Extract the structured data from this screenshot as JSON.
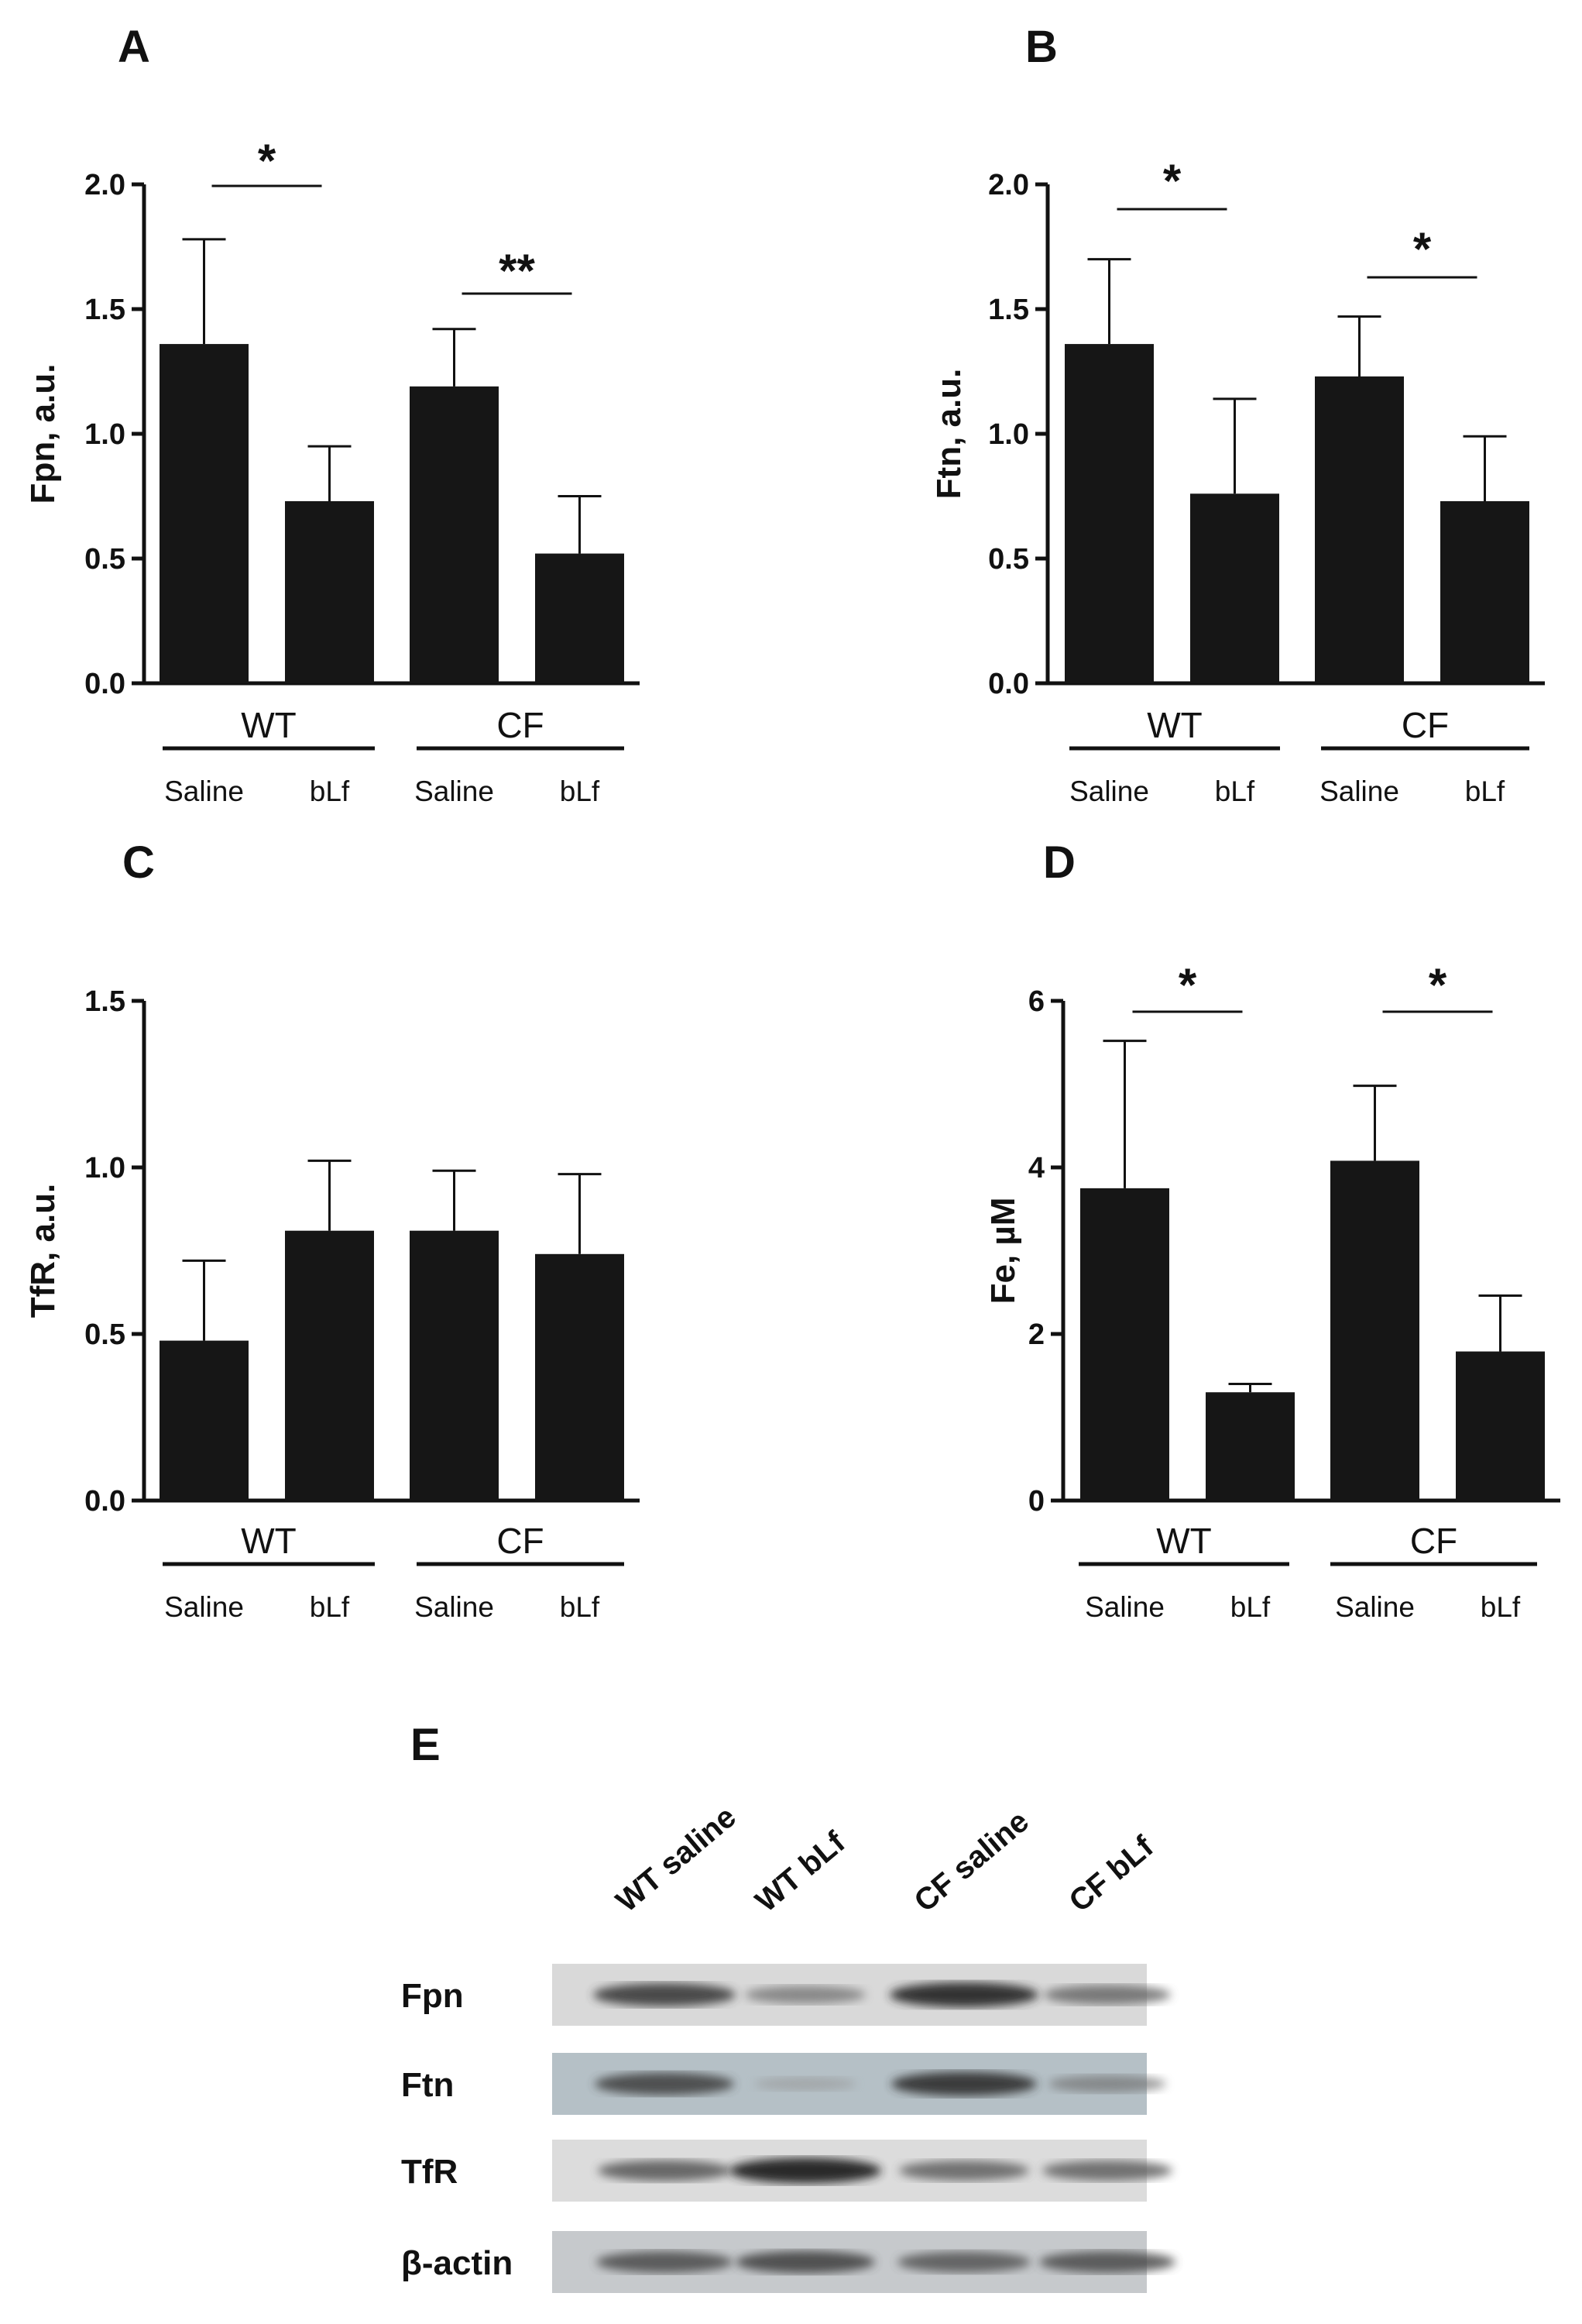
{
  "chart_data": [
    {
      "panel": "A",
      "type": "bar",
      "ylabel": "Fpn, a.u.",
      "ylim": [
        0,
        2.0
      ],
      "yticks": [
        "0.0",
        "0.5",
        "1.0",
        "1.5",
        "2.0"
      ],
      "groups": [
        "WT",
        "CF"
      ],
      "categories": [
        "Saline",
        "bLf",
        "Saline",
        "bLf"
      ],
      "values": [
        1.36,
        0.73,
        1.19,
        0.52
      ],
      "errors": [
        0.42,
        0.22,
        0.23,
        0.23
      ],
      "significance": [
        {
          "group": 0,
          "label": "*"
        },
        {
          "group": 1,
          "label": "**"
        }
      ]
    },
    {
      "panel": "B",
      "type": "bar",
      "ylabel": "Ftn, a.u.",
      "ylim": [
        0,
        2.0
      ],
      "yticks": [
        "0.0",
        "0.5",
        "1.0",
        "1.5",
        "2.0"
      ],
      "groups": [
        "WT",
        "CF"
      ],
      "categories": [
        "Saline",
        "bLf",
        "Saline",
        "bLf"
      ],
      "values": [
        1.36,
        0.76,
        1.23,
        0.73
      ],
      "errors": [
        0.34,
        0.38,
        0.24,
        0.26
      ],
      "significance": [
        {
          "group": 0,
          "label": "*"
        },
        {
          "group": 1,
          "label": "*"
        }
      ]
    },
    {
      "panel": "C",
      "type": "bar",
      "ylabel": "TfR, a.u.",
      "ylim": [
        0,
        1.5
      ],
      "yticks": [
        "0.0",
        "0.5",
        "1.0",
        "1.5"
      ],
      "groups": [
        "WT",
        "CF"
      ],
      "categories": [
        "Saline",
        "bLf",
        "Saline",
        "bLf"
      ],
      "values": [
        0.48,
        0.81,
        0.81,
        0.74
      ],
      "errors": [
        0.24,
        0.21,
        0.18,
        0.24
      ],
      "significance": []
    },
    {
      "panel": "D",
      "type": "bar",
      "ylabel": "Fe, µM",
      "ylim": [
        0,
        6
      ],
      "yticks": [
        "0",
        "2",
        "4",
        "6"
      ],
      "groups": [
        "WT",
        "CF"
      ],
      "categories": [
        "Saline",
        "bLf",
        "Saline",
        "bLf"
      ],
      "values": [
        3.75,
        1.3,
        4.08,
        1.79
      ],
      "errors": [
        1.77,
        0.1,
        0.9,
        0.67
      ],
      "significance": [
        {
          "group": 0,
          "label": "*"
        },
        {
          "group": 1,
          "label": "*"
        }
      ]
    }
  ],
  "blot": {
    "panel": "E",
    "lanes": [
      "WT saline",
      "WT bLf",
      "CF saline",
      "CF bLf"
    ],
    "rows": [
      {
        "label": "Fpn",
        "bg": "#d9d9d9",
        "intensity": [
          0.8,
          0.45,
          0.9,
          0.55
        ]
      },
      {
        "label": "Ftn",
        "bg": "#b5c0c6",
        "intensity": [
          0.75,
          0.15,
          0.85,
          0.4
        ]
      },
      {
        "label": "TfR",
        "bg": "#dcdcdc",
        "intensity": [
          0.65,
          0.95,
          0.6,
          0.6
        ]
      },
      {
        "label": "β-actin",
        "bg": "#c6c9cc",
        "intensity": [
          0.7,
          0.75,
          0.65,
          0.7
        ]
      }
    ]
  }
}
